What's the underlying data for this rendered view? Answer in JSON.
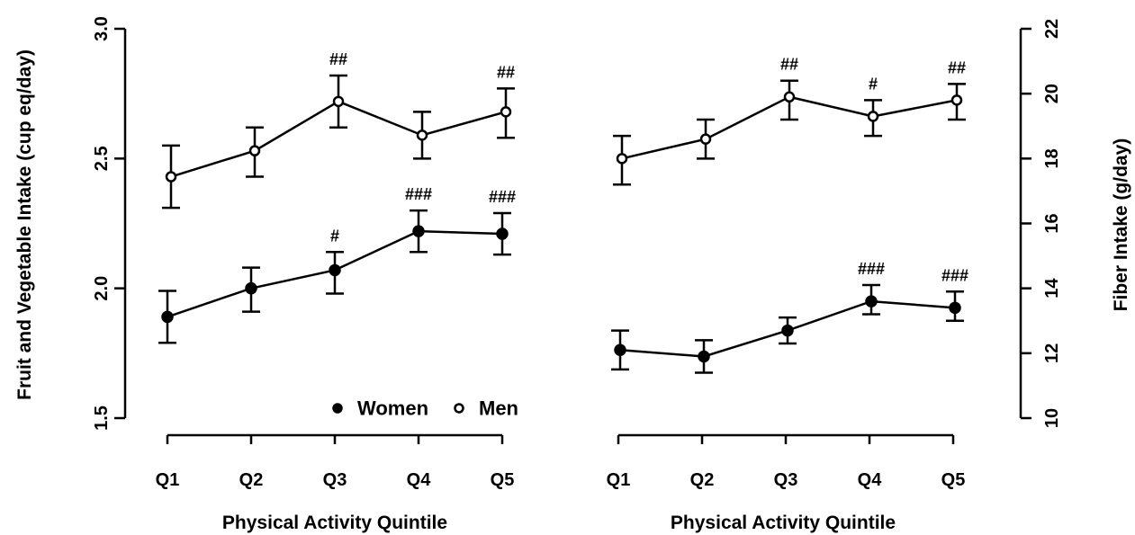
{
  "chart_data": [
    {
      "type": "line",
      "panel": "left",
      "xlabel": "Physical Activity Quintile",
      "ylabel": "Fruit and Vegetable Intake (cup eq/day)",
      "y_axis_side": "left",
      "ylim": [
        1.5,
        3.0
      ],
      "yticks": [
        "1.5",
        "2.0",
        "2.5",
        "3.0"
      ],
      "categories": [
        "Q1",
        "Q2",
        "Q3",
        "Q4",
        "Q5"
      ],
      "series": [
        {
          "name": "Men",
          "marker": "open-circle",
          "values": [
            2.43,
            2.53,
            2.72,
            2.59,
            2.68
          ],
          "lower": [
            2.31,
            2.43,
            2.62,
            2.5,
            2.58
          ],
          "upper": [
            2.55,
            2.62,
            2.82,
            2.68,
            2.77
          ],
          "annotations": [
            "",
            "",
            "##",
            "",
            "##"
          ]
        },
        {
          "name": "Women",
          "marker": "filled-circle",
          "values": [
            1.89,
            2.0,
            2.07,
            2.22,
            2.21
          ],
          "lower": [
            1.79,
            1.91,
            1.98,
            2.14,
            2.13
          ],
          "upper": [
            1.99,
            2.08,
            2.14,
            2.3,
            2.29
          ],
          "annotations": [
            "",
            "",
            "#",
            "###",
            "###"
          ]
        }
      ],
      "legend": {
        "placement": "bottom-right",
        "entries": [
          {
            "label": "Women",
            "marker": "filled-circle"
          },
          {
            "label": "Men",
            "marker": "open-circle"
          }
        ]
      },
      "grid": false
    },
    {
      "type": "line",
      "panel": "right",
      "xlabel": "Physical Activity Quintile",
      "ylabel": "Fiber Intake (g/day)",
      "y_axis_side": "right",
      "ylim": [
        10,
        22
      ],
      "yticks": [
        "10",
        "12",
        "14",
        "16",
        "18",
        "20",
        "22"
      ],
      "categories": [
        "Q1",
        "Q2",
        "Q3",
        "Q4",
        "Q5"
      ],
      "series": [
        {
          "name": "Men",
          "marker": "open-circle",
          "values": [
            18.0,
            18.6,
            19.9,
            19.3,
            19.8
          ],
          "lower": [
            17.2,
            18.0,
            19.2,
            18.7,
            19.2
          ],
          "upper": [
            18.7,
            19.2,
            20.4,
            19.8,
            20.3
          ],
          "annotations": [
            "",
            "",
            "##",
            "#",
            "##"
          ]
        },
        {
          "name": "Women",
          "marker": "filled-circle",
          "values": [
            12.1,
            11.9,
            12.7,
            13.6,
            13.4
          ],
          "lower": [
            11.5,
            11.4,
            12.3,
            13.2,
            13.0
          ],
          "upper": [
            12.7,
            12.4,
            13.1,
            14.1,
            13.9
          ],
          "annotations": [
            "",
            "",
            "",
            "###",
            "###"
          ]
        }
      ],
      "grid": false
    }
  ]
}
